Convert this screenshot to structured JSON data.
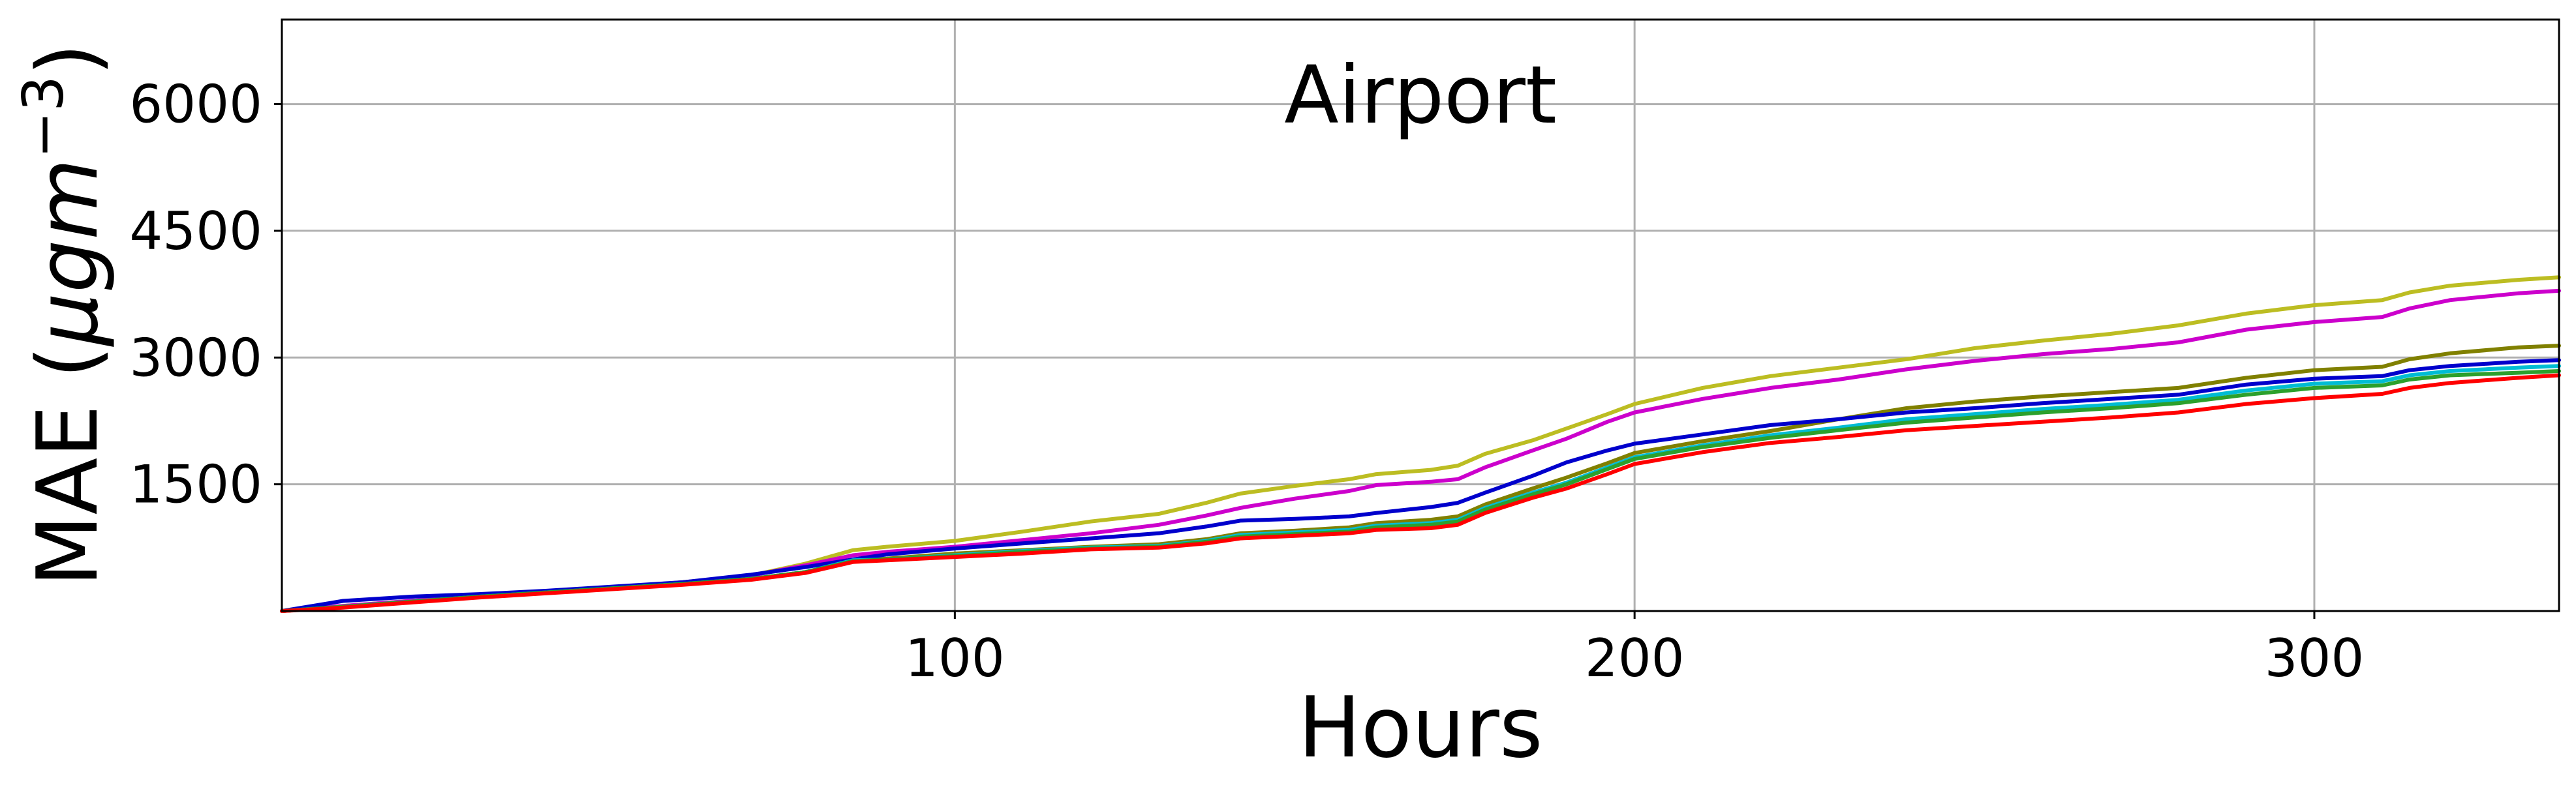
{
  "chart_data": {
    "type": "line",
    "title": "Airport",
    "xlabel": "Hours",
    "ylabel_main": "MAE (",
    "ylabel_mu": "μgm",
    "ylabel_sup": "−3",
    "ylabel_close": ")",
    "xlim": [
      1,
      336
    ],
    "ylim": [
      0,
      7000
    ],
    "xticks": [
      100,
      200,
      300
    ],
    "xtick_labels": [
      "100",
      "200",
      "300"
    ],
    "yticks": [
      1500,
      3000,
      4500,
      6000
    ],
    "ytick_labels": [
      "1500",
      "3000",
      "4500",
      "6000"
    ],
    "grid": true,
    "x": [
      1,
      10,
      20,
      30,
      40,
      50,
      60,
      70,
      78,
      85,
      90,
      100,
      110,
      120,
      130,
      137,
      142,
      150,
      158,
      162,
      170,
      174,
      178,
      185,
      190,
      196,
      200,
      210,
      220,
      230,
      240,
      250,
      260,
      270,
      280,
      290,
      300,
      310,
      314,
      320,
      330,
      336
    ],
    "series": [
      {
        "color": "#bcbd22",
        "values": [
          0,
          60,
          120,
          180,
          230,
          280,
          340,
          420,
          560,
          720,
          760,
          830,
          940,
          1060,
          1150,
          1280,
          1390,
          1480,
          1560,
          1620,
          1670,
          1720,
          1860,
          2020,
          2160,
          2330,
          2450,
          2640,
          2780,
          2880,
          2980,
          3110,
          3200,
          3280,
          3380,
          3520,
          3620,
          3680,
          3770,
          3850,
          3920,
          3950
        ]
      },
      {
        "color": "#cc00cc",
        "values": [
          0,
          60,
          120,
          180,
          230,
          280,
          340,
          420,
          540,
          660,
          700,
          760,
          840,
          920,
          1020,
          1130,
          1220,
          1330,
          1420,
          1490,
          1530,
          1560,
          1700,
          1900,
          2040,
          2240,
          2350,
          2510,
          2640,
          2740,
          2860,
          2960,
          3040,
          3100,
          3180,
          3330,
          3420,
          3480,
          3580,
          3680,
          3760,
          3790
        ]
      },
      {
        "color": "#808000",
        "values": [
          0,
          50,
          110,
          170,
          220,
          270,
          320,
          380,
          460,
          600,
          620,
          680,
          720,
          760,
          790,
          850,
          920,
          950,
          990,
          1040,
          1080,
          1120,
          1260,
          1450,
          1580,
          1750,
          1870,
          2010,
          2130,
          2270,
          2400,
          2480,
          2540,
          2590,
          2640,
          2760,
          2850,
          2890,
          2980,
          3050,
          3120,
          3140
        ]
      },
      {
        "color": "#0000cc",
        "values": [
          0,
          120,
          170,
          200,
          240,
          290,
          340,
          430,
          520,
          610,
          670,
          740,
          800,
          860,
          920,
          1000,
          1070,
          1090,
          1120,
          1160,
          1230,
          1280,
          1400,
          1600,
          1760,
          1900,
          1980,
          2090,
          2200,
          2270,
          2350,
          2400,
          2460,
          2510,
          2560,
          2680,
          2750,
          2780,
          2850,
          2900,
          2950,
          2970
        ]
      },
      {
        "color": "#00bcd4",
        "values": [
          0,
          50,
          110,
          170,
          220,
          270,
          320,
          380,
          460,
          600,
          610,
          660,
          710,
          750,
          770,
          830,
          900,
          930,
          960,
          1010,
          1040,
          1080,
          1220,
          1400,
          1520,
          1700,
          1820,
          1960,
          2080,
          2170,
          2270,
          2330,
          2390,
          2440,
          2500,
          2610,
          2690,
          2720,
          2790,
          2840,
          2880,
          2900
        ]
      },
      {
        "color": "#2ca02c",
        "values": [
          0,
          50,
          110,
          170,
          220,
          270,
          320,
          380,
          460,
          590,
          610,
          650,
          700,
          740,
          760,
          820,
          880,
          910,
          940,
          990,
          1020,
          1060,
          1200,
          1380,
          1500,
          1680,
          1800,
          1940,
          2050,
          2140,
          2230,
          2290,
          2350,
          2400,
          2460,
          2560,
          2640,
          2670,
          2740,
          2790,
          2820,
          2840
        ]
      },
      {
        "color": "#ff0000",
        "values": [
          0,
          40,
          100,
          160,
          210,
          260,
          310,
          370,
          450,
          580,
          600,
          640,
          680,
          730,
          750,
          800,
          860,
          890,
          920,
          960,
          980,
          1020,
          1160,
          1340,
          1450,
          1620,
          1740,
          1880,
          1990,
          2060,
          2140,
          2190,
          2240,
          2290,
          2350,
          2450,
          2520,
          2570,
          2640,
          2700,
          2760,
          2790
        ]
      }
    ]
  }
}
